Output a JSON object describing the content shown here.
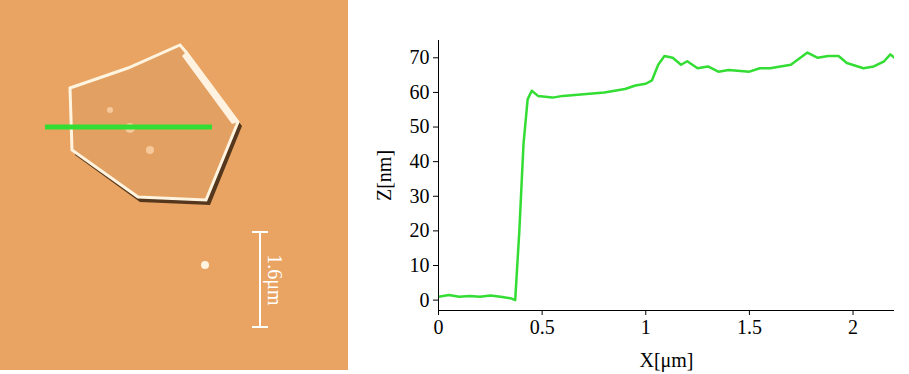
{
  "image": {
    "scale_bar_label": "1.6μm"
  },
  "chart_data": {
    "type": "line",
    "xlabel": "X[μm]",
    "ylabel": "Z[nm]",
    "x": [
      0,
      0.05,
      0.1,
      0.15,
      0.2,
      0.25,
      0.3,
      0.35,
      0.37,
      0.39,
      0.41,
      0.43,
      0.45,
      0.48,
      0.55,
      0.6,
      0.7,
      0.8,
      0.9,
      0.95,
      1.0,
      1.03,
      1.06,
      1.09,
      1.13,
      1.17,
      1.2,
      1.25,
      1.3,
      1.35,
      1.4,
      1.5,
      1.55,
      1.6,
      1.7,
      1.78,
      1.83,
      1.88,
      1.93,
      1.97,
      2.05,
      2.1,
      2.15,
      2.18,
      2.2
    ],
    "values": [
      1,
      1.5,
      1,
      1.2,
      1,
      1.3,
      1,
      0.5,
      0,
      20,
      45,
      58,
      60.5,
      59,
      58.5,
      59,
      59.5,
      60,
      61,
      62,
      62.5,
      63.5,
      68,
      70.5,
      70,
      68,
      69,
      67,
      67.5,
      66,
      66.5,
      66,
      67,
      67,
      68,
      71.5,
      70,
      70.5,
      70.5,
      68.5,
      67,
      67.5,
      69,
      71,
      70
    ],
    "color": "#33dd33",
    "xlim": [
      0,
      2.2
    ],
    "ylim": [
      -3,
      75
    ],
    "xticks": [
      0,
      0.5,
      1,
      1.5,
      2
    ],
    "yticks": [
      0,
      10,
      20,
      30,
      40,
      50,
      60,
      70
    ],
    "grid": false
  }
}
